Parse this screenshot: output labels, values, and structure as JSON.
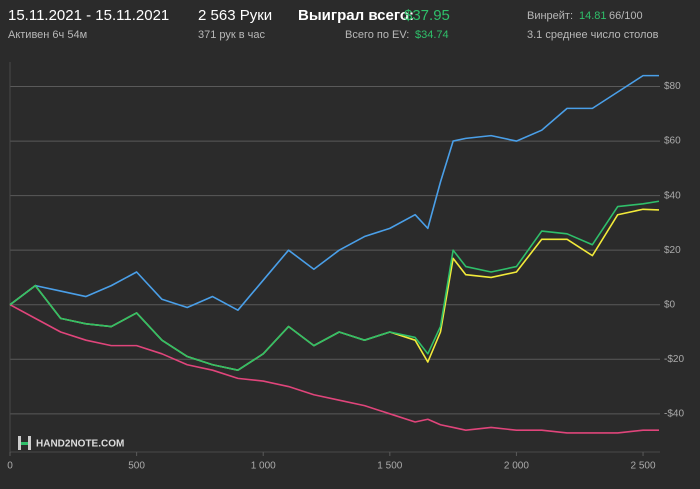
{
  "header": {
    "date_range": "15.11.2021 - 15.11.2021",
    "active": "Активен 6ч 54м",
    "hands": "2 563 Руки",
    "hands_per_hour": "371 рук в час",
    "won_label": "Выиграл всего:",
    "won_value": "$37.95",
    "ev_label": "Всего по EV:",
    "ev_value": "$34.74",
    "winrate_label": "Винрейт:",
    "winrate_value": "14.81",
    "winrate_unit": "66/100",
    "tables": "3.1 среднее число столов",
    "logo": "HAND2NOTE.COM"
  },
  "chart_data": {
    "type": "line",
    "x": [
      0,
      100,
      200,
      300,
      400,
      500,
      600,
      700,
      800,
      900,
      1000,
      1100,
      1200,
      1300,
      1400,
      1500,
      1600,
      1650,
      1700,
      1750,
      1800,
      1900,
      2000,
      2100,
      2200,
      2300,
      2400,
      2500,
      2563
    ],
    "series": [
      {
        "color": "#e0457b",
        "values": [
          0,
          -5,
          -10,
          -13,
          -15,
          -15,
          -18,
          -22,
          -24,
          -27,
          -28,
          -30,
          -33,
          -35,
          -37,
          -40,
          -43,
          -42,
          -44,
          -45,
          -46,
          -45,
          -46,
          -46,
          -47,
          -47,
          -47,
          -46,
          -46
        ]
      },
      {
        "color": "#4a9fe8",
        "values": [
          0,
          7,
          5,
          3,
          7,
          12,
          2,
          -1,
          3,
          -2,
          9,
          20,
          13,
          20,
          25,
          28,
          33,
          28,
          45,
          60,
          61,
          62,
          60,
          64,
          72,
          72,
          78,
          84,
          84
        ]
      },
      {
        "color": "#f2ea3a",
        "values": [
          0,
          7,
          -5,
          -7,
          -8,
          -3,
          -13,
          -19,
          -22,
          -24,
          -18,
          -8,
          -15,
          -10,
          -13,
          -10,
          -13,
          -21,
          -10,
          17,
          11,
          10,
          12,
          24,
          24,
          18,
          33,
          35,
          34.74
        ]
      },
      {
        "color": "#2fbf6a",
        "values": [
          0,
          7,
          -5,
          -7,
          -8,
          -3,
          -13,
          -19,
          -22,
          -24,
          -18,
          -8,
          -15,
          -10,
          -13,
          -10,
          -12,
          -18,
          -8,
          20,
          14,
          12,
          14,
          27,
          26,
          22,
          36,
          37,
          37.95
        ]
      }
    ],
    "xlim": [
      0,
      2567
    ],
    "ylim": [
      -54,
      89
    ],
    "xticks": [
      0,
      500,
      {
        "value": 1000,
        "label": "1 000"
      },
      {
        "value": 1500,
        "label": "1 500"
      },
      {
        "value": 2000,
        "label": "2 000"
      },
      {
        "value": 2500,
        "label": "2 500"
      }
    ],
    "yticks": [
      {
        "value": -40,
        "label": "-$40"
      },
      {
        "value": -20,
        "label": "-$20"
      },
      {
        "value": 0,
        "label": "$0"
      },
      {
        "value": 20,
        "label": "$20"
      },
      {
        "value": 40,
        "label": "$40"
      },
      {
        "value": 60,
        "label": "$60"
      },
      {
        "value": 80,
        "label": "$80"
      }
    ],
    "grid": true
  }
}
